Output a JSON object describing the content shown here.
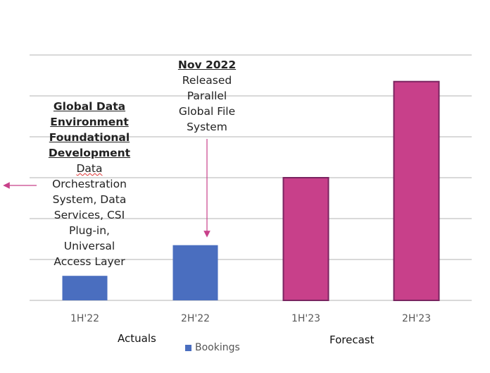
{
  "chart_data": {
    "type": "bar",
    "title": "",
    "xlabel": "",
    "ylabel": "",
    "categories": [
      "1H'22",
      "2H'22",
      "1H'23",
      "2H'23"
    ],
    "series": [
      {
        "name": "Bookings",
        "values": [
          0.6,
          1.35,
          3.0,
          5.35
        ]
      }
    ],
    "ylim": [
      0,
      6
    ],
    "y_units": "relative (gridline intervals, no y-axis labels shown)",
    "grid": true,
    "legend": "bottom",
    "colors": {
      "actual": "#4a6ebf",
      "forecast": "#c8408a",
      "forecast_border": "#7a2460",
      "grid": "#d9d9d9",
      "arrow": "#c8408a"
    },
    "bar_group": [
      "actual",
      "actual",
      "forecast",
      "forecast"
    ],
    "group_labels": {
      "actuals": "Actuals",
      "forecast": "Forecast"
    },
    "annotations": {
      "left": {
        "heading": [
          "Global Data",
          "Environment",
          "Foundational",
          "Development"
        ],
        "body": [
          "Data",
          "Orchestration",
          "System, Data",
          "Services, CSI",
          "Plug-in,",
          "Universal",
          "Access Layer"
        ]
      },
      "nov": {
        "heading": [
          "Nov 2022"
        ],
        "body": [
          "Released",
          "Parallel",
          "Global File",
          "System"
        ]
      }
    }
  }
}
